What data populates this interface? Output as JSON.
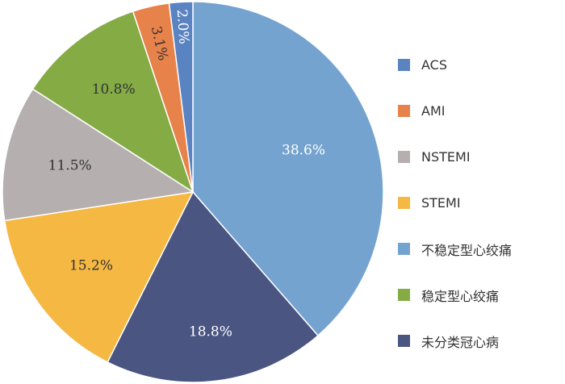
{
  "chart_data": {
    "type": "pie",
    "title": "",
    "start": "top",
    "direction": "clockwise",
    "legend_position": "right",
    "slices": [
      {
        "name": "不稳定型心绞痛",
        "value": 38.6,
        "label": "38.6%",
        "color": "#74a3cf",
        "label_color": "#ffffff"
      },
      {
        "name": "未分类冠心病",
        "value": 18.8,
        "label": "18.8%",
        "color": "#4a5581",
        "label_color": "#ffffff"
      },
      {
        "name": "STEMI",
        "value": 15.2,
        "label": "15.2%",
        "color": "#f5b843",
        "label_color": "#333333"
      },
      {
        "name": "NSTEMI",
        "value": 11.5,
        "label": "11.5%",
        "color": "#b5afb0",
        "label_color": "#333333"
      },
      {
        "name": "稳定型心绞痛",
        "value": 10.8,
        "label": "10.8%",
        "color": "#84ab44",
        "label_color": "#333333"
      },
      {
        "name": "AMI",
        "value": 3.1,
        "label": "3.1%",
        "color": "#e8824b",
        "label_color": "#333333"
      },
      {
        "name": "ACS",
        "value": 2.0,
        "label": "2.0%",
        "color": "#5a83c1",
        "label_color": "#ffffff"
      }
    ],
    "legend": [
      {
        "name": "ACS",
        "color": "#5a83c1"
      },
      {
        "name": "AMI",
        "color": "#e8824b"
      },
      {
        "name": "NSTEMI",
        "color": "#b5afb0"
      },
      {
        "name": "STEMI",
        "color": "#f5b843"
      },
      {
        "name": "不稳定型心绞痛",
        "color": "#74a3cf"
      },
      {
        "name": "稳定型心绞痛",
        "color": "#84ab44"
      },
      {
        "name": "未分类冠心病",
        "color": "#4a5581"
      }
    ]
  }
}
